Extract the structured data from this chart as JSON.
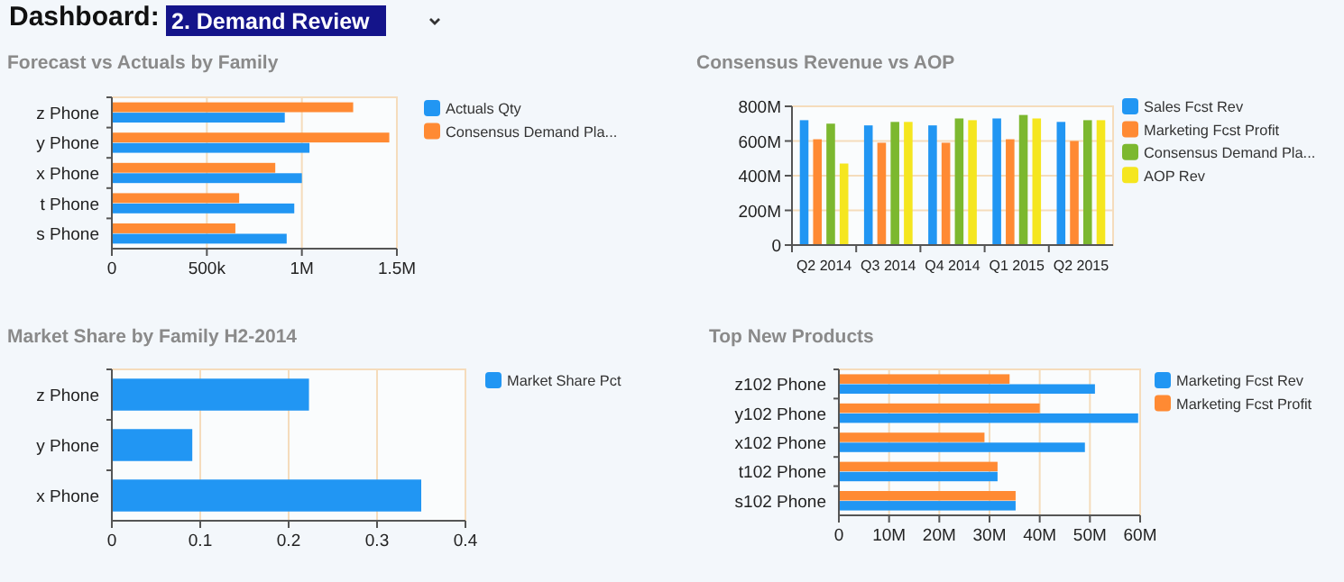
{
  "chart_data": [
    {
      "type": "other",
      "title": "Dashboard:",
      "annotations": [
        "2. Demand Review"
      ]
    },
    {
      "type": "bar",
      "orientation": "horizontal",
      "title": "Forecast vs Actuals by Family",
      "categories": [
        "z Phone",
        "y Phone",
        "x Phone",
        "t Phone",
        "s Phone"
      ],
      "series": [
        {
          "name": "Actuals Qty",
          "color": "#2196f3",
          "values": [
            910000,
            1040000,
            1000000,
            960000,
            920000
          ]
        },
        {
          "name": "Consensus Demand Pla...",
          "color": "#ff8a33",
          "values": [
            1270000,
            1460000,
            860000,
            670000,
            650000
          ]
        }
      ],
      "xlim": [
        0,
        1500000
      ],
      "xticks": [
        0,
        {
          "value": 500000,
          "label": "500k"
        },
        {
          "value": 1000000,
          "label": "1M"
        },
        {
          "value": 1500000,
          "label": "1.5M"
        }
      ],
      "grid": "x",
      "legend": "right"
    },
    {
      "type": "bar",
      "title": "Consensus Revenue vs AOP",
      "categories": [
        "Q2 2014",
        "Q3 2014",
        "Q4 2014",
        "Q1 2015",
        "Q2 2015"
      ],
      "series": [
        {
          "name": "Sales Fcst Rev",
          "color": "#2196f3",
          "values": [
            720000000,
            690000000,
            690000000,
            730000000,
            710000000
          ]
        },
        {
          "name": "Marketing Fcst Profit",
          "color": "#ff8a33",
          "values": [
            610000000,
            590000000,
            590000000,
            610000000,
            600000000
          ]
        },
        {
          "name": "Consensus Demand Pla...",
          "color": "#7cb82f",
          "values": [
            700000000,
            710000000,
            730000000,
            750000000,
            720000000
          ]
        },
        {
          "name": "AOP Rev",
          "color": "#f5e61f",
          "values": [
            470000000,
            710000000,
            720000000,
            730000000,
            720000000
          ]
        }
      ],
      "ylim": [
        0,
        800000000
      ],
      "yticks": [
        0,
        {
          "value": 200000000,
          "label": "200M"
        },
        {
          "value": 400000000,
          "label": "400M"
        },
        {
          "value": 600000000,
          "label": "600M"
        },
        {
          "value": 800000000,
          "label": "800M"
        }
      ],
      "grid": "y",
      "legend": "right"
    },
    {
      "type": "bar",
      "orientation": "horizontal",
      "title": "Market Share by Family H2-2014",
      "categories": [
        "z Phone",
        "y Phone",
        "x Phone"
      ],
      "series": [
        {
          "name": "Market Share Pct",
          "color": "#2196f3",
          "values": [
            0.223,
            0.091,
            0.35
          ]
        }
      ],
      "xlim": [
        0,
        0.4
      ],
      "xticks": [
        0,
        0.1,
        0.2,
        0.3,
        0.4
      ],
      "grid": "x",
      "legend": "right"
    },
    {
      "type": "bar",
      "orientation": "horizontal",
      "title": "Top New Products",
      "categories": [
        "z102 Phone",
        "y102 Phone",
        "x102 Phone",
        "t102 Phone",
        "s102 Phone"
      ],
      "series": [
        {
          "name": "Marketing Fcst Rev",
          "color": "#2196f3",
          "values": [
            51000000,
            59600000,
            49000000,
            31600000,
            35200000
          ]
        },
        {
          "name": "Marketing Fcst Profit",
          "color": "#ff8a33",
          "values": [
            34000000,
            40000000,
            29000000,
            31600000,
            35200000
          ]
        }
      ],
      "xlim": [
        0,
        60000000
      ],
      "xticks": [
        0,
        {
          "value": 10000000,
          "label": "10M"
        },
        {
          "value": 20000000,
          "label": "20M"
        },
        {
          "value": 30000000,
          "label": "30M"
        },
        {
          "value": 40000000,
          "label": "40M"
        },
        {
          "value": 50000000,
          "label": "50M"
        },
        {
          "value": 60000000,
          "label": "60M"
        }
      ],
      "grid": "x",
      "legend": "right"
    }
  ]
}
